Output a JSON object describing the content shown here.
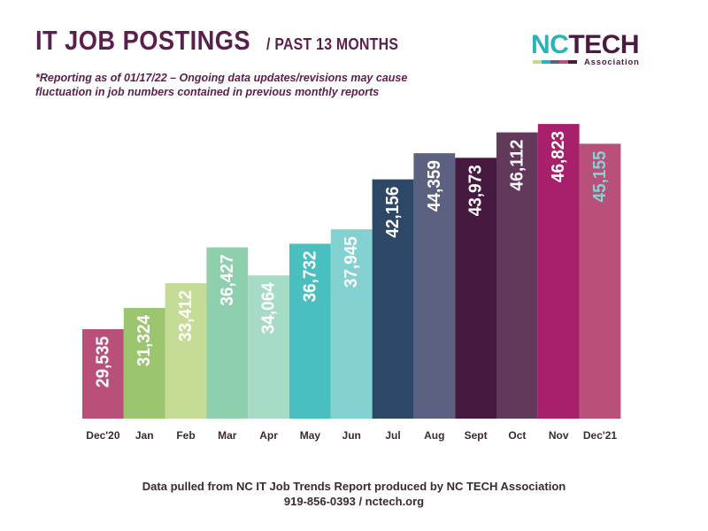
{
  "header": {
    "title": "IT JOB POSTINGS",
    "subtitle": "/ PAST 13 MONTHS",
    "note": "*Reporting as of 01/17/22 – Ongoing data updates/revisions may cause fluctuation in job numbers contained in previous monthly reports"
  },
  "logo": {
    "nc": "NC",
    "tech": "TECH",
    "association": "Association",
    "strip_colors": [
      "#c7d98c",
      "#2ab3b8",
      "#5d6181",
      "#b8507a",
      "#4a1b3f"
    ]
  },
  "chart_data": {
    "type": "bar",
    "categories": [
      "Dec'20",
      "Jan",
      "Feb",
      "Mar",
      "Apr",
      "May",
      "Jun",
      "Jul",
      "Aug",
      "Sept",
      "Oct",
      "Nov",
      "Dec'21"
    ],
    "values": [
      29535,
      31324,
      33412,
      36427,
      34064,
      36732,
      37945,
      42156,
      44359,
      43973,
      46112,
      46823,
      45155
    ],
    "labels": [
      "29,535",
      "31,324",
      "33,412",
      "36,427",
      "34,064",
      "36,732",
      "37,945",
      "42,156",
      "44,359",
      "43,973",
      "46,112",
      "46,823",
      "45,155"
    ],
    "bar_colors": [
      "#b8507a",
      "#9cc56f",
      "#c5dc97",
      "#8ecfae",
      "#a6dbc5",
      "#49c0bf",
      "#84d1d1",
      "#2d4766",
      "#5d6181",
      "#461a40",
      "#63395b",
      "#a8206b",
      "#b8507a"
    ],
    "label_colors": [
      "#ffffff",
      "#ffffff",
      "#ffffff",
      "#ffffff",
      "#ffffff",
      "#ffffff",
      "#ffffff",
      "#ffffff",
      "#ffffff",
      "#ffffff",
      "#ffffff",
      "#ffffff",
      "#84d1d1"
    ],
    "ylim": [
      22000,
      47500
    ],
    "grid": false,
    "legend": "none"
  },
  "footer": {
    "line1": "Data pulled from NC IT Job Trends Report produced by NC TECH Association",
    "line2": "919-856-0393  /  nctech.org"
  }
}
